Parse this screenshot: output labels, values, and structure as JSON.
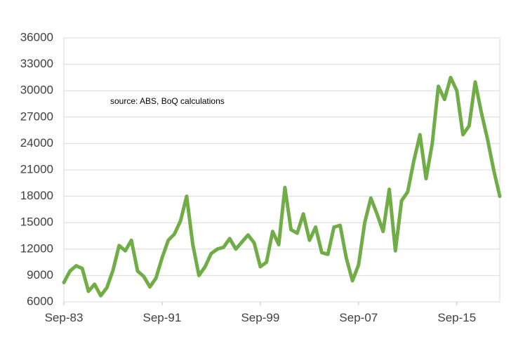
{
  "chart_data": {
    "type": "line",
    "title": "",
    "xlabel": "",
    "ylabel": "",
    "annotation": "source:  ABS, BoQ calculations",
    "ylim": [
      6000,
      36000
    ],
    "yticks": [
      "36000",
      "33000",
      "30000",
      "27000",
      "24000",
      "21000",
      "18000",
      "15000",
      "12000",
      "9000",
      "6000"
    ],
    "xticks": [
      "Sep-83",
      "Sep-91",
      "Sep-99",
      "Sep-07",
      "Sep-15"
    ],
    "grid": "horizontal",
    "line_color": "#70ad47",
    "series": [
      {
        "x": [
          "1983-09",
          "1984-03",
          "1984-09",
          "1985-03",
          "1985-09",
          "1986-03",
          "1986-09",
          "1987-03",
          "1987-09",
          "1988-03",
          "1988-09",
          "1989-03",
          "1989-09",
          "1990-03",
          "1990-09",
          "1991-03",
          "1991-09",
          "1992-03",
          "1992-09",
          "1993-03",
          "1993-09",
          "1994-03",
          "1994-09",
          "1995-03",
          "1995-09",
          "1996-03",
          "1996-09",
          "1997-03",
          "1997-09",
          "1998-03",
          "1998-09",
          "1999-03",
          "1999-09",
          "2000-03",
          "2000-09",
          "2001-03",
          "2001-09",
          "2002-03",
          "2002-09",
          "2003-03",
          "2003-09",
          "2004-03",
          "2004-09",
          "2005-03",
          "2005-09",
          "2006-03",
          "2006-09",
          "2007-03",
          "2007-09",
          "2008-03",
          "2008-09",
          "2009-03",
          "2009-09",
          "2010-03",
          "2010-09",
          "2011-03",
          "2011-09",
          "2012-03",
          "2012-09",
          "2013-03",
          "2013-09",
          "2014-03",
          "2014-09",
          "2015-03",
          "2015-09",
          "2016-03",
          "2016-09",
          "2017-03",
          "2017-09",
          "2018-03",
          "2018-09",
          "2019-03"
        ],
        "y": [
          8200,
          9500,
          10100,
          9800,
          7200,
          8000,
          6700,
          7600,
          9600,
          12400,
          11800,
          13000,
          9500,
          8900,
          7700,
          8700,
          11000,
          13000,
          13700,
          15200,
          18000,
          12500,
          9000,
          10000,
          11500,
          12000,
          12200,
          13200,
          12000,
          12800,
          13600,
          12700,
          10000,
          10500,
          14000,
          12500,
          19000,
          14200,
          13800,
          16000,
          13000,
          14500,
          11600,
          11400,
          14500,
          14700,
          11000,
          8400,
          10200,
          15000,
          17800,
          16000,
          14000,
          18800,
          11800,
          17500,
          18500,
          22000,
          25000,
          20000,
          24000,
          30500,
          29000,
          31500,
          30000,
          25000,
          26000,
          31000,
          27500,
          24500,
          21000,
          18000
        ]
      }
    ]
  }
}
